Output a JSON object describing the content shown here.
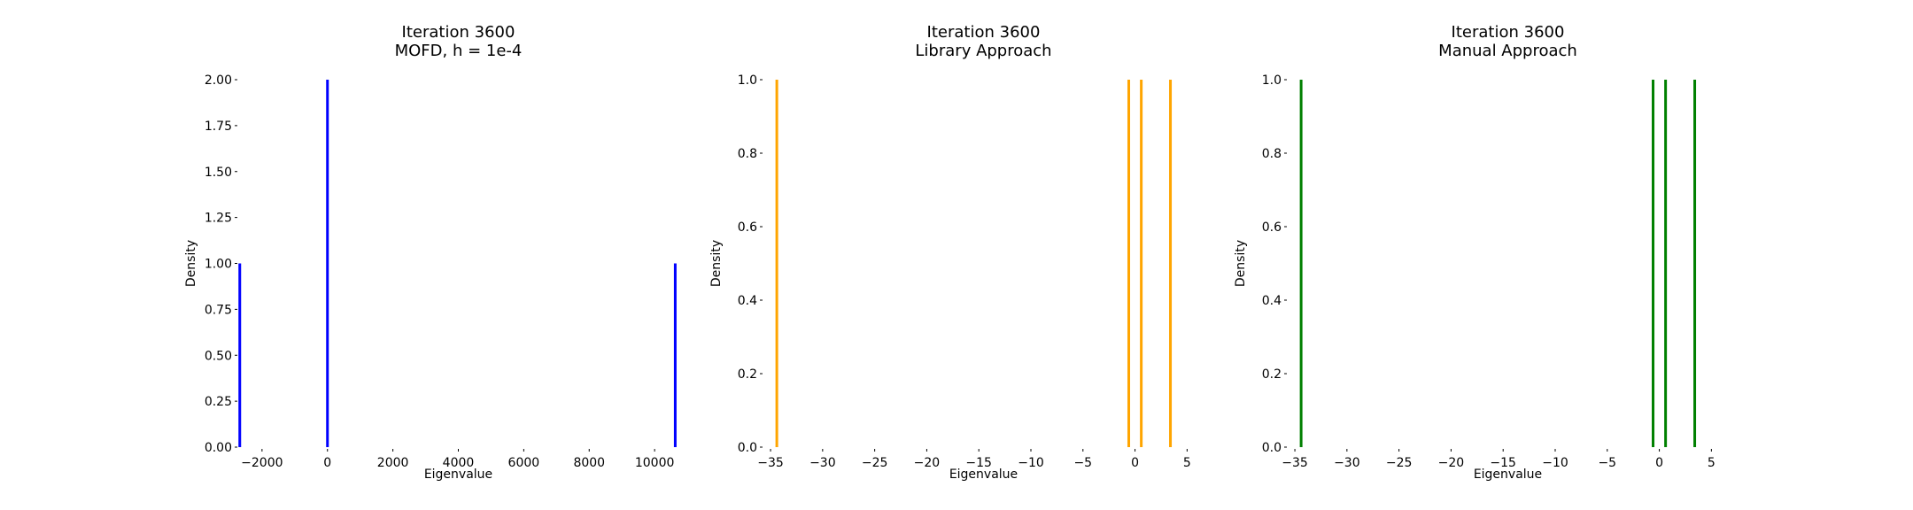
{
  "chart_data": [
    {
      "type": "bar",
      "title": "Iteration 3600",
      "subtitle": "MOFD, h = 1e-4",
      "xlabel": "Eigenvalue",
      "ylabel": "Density",
      "color": "#0000ff",
      "grid": false,
      "xlim": [
        -2700,
        10700
      ],
      "ylim": [
        0,
        2
      ],
      "xticks": [
        -2000,
        0,
        2000,
        4000,
        6000,
        8000,
        10000
      ],
      "xtick_labels": [
        "−2000",
        "0",
        "2000",
        "4000",
        "6000",
        "8000",
        "10000"
      ],
      "yticks": [
        0,
        0.25,
        0.5,
        0.75,
        1.0,
        1.25,
        1.5,
        1.75,
        2.0
      ],
      "ytick_labels": [
        "0.00",
        "0.25",
        "0.50",
        "0.75",
        "1.00",
        "1.25",
        "1.50",
        "1.75",
        "2.00"
      ],
      "x": [
        -2680,
        0,
        10630
      ],
      "values": [
        1,
        2,
        1
      ]
    },
    {
      "type": "bar",
      "title": "Iteration 3600",
      "subtitle": "Library Approach",
      "xlabel": "Eigenvalue",
      "ylabel": "Density",
      "color": "#ffa500",
      "grid": false,
      "xlim": [
        -35.6,
        6.5
      ],
      "ylim": [
        0,
        1
      ],
      "xticks": [
        -35,
        -30,
        -25,
        -20,
        -15,
        -10,
        -5,
        0,
        5
      ],
      "xtick_labels": [
        "−35",
        "−30",
        "−25",
        "−20",
        "−15",
        "−10",
        "−5",
        "0",
        "5"
      ],
      "yticks": [
        0,
        0.2,
        0.4,
        0.6,
        0.8,
        1.0
      ],
      "ytick_labels": [
        "0.0",
        "0.2",
        "0.4",
        "0.6",
        "0.8",
        "1.0"
      ],
      "x": [
        -34.4,
        -0.6,
        0.6,
        3.4
      ],
      "values": [
        1,
        1,
        1,
        1
      ]
    },
    {
      "type": "bar",
      "title": "Iteration 3600",
      "subtitle": "Manual Approach",
      "xlabel": "Eigenvalue",
      "ylabel": "Density",
      "color": "#008000",
      "grid": false,
      "xlim": [
        -35.6,
        6.5
      ],
      "ylim": [
        0,
        1
      ],
      "xticks": [
        -35,
        -30,
        -25,
        -20,
        -15,
        -10,
        -5,
        0,
        5
      ],
      "xtick_labels": [
        "−35",
        "−30",
        "−25",
        "−20",
        "−15",
        "−10",
        "−5",
        "0",
        "5"
      ],
      "yticks": [
        0,
        0.2,
        0.4,
        0.6,
        0.8,
        1.0
      ],
      "ytick_labels": [
        "0.0",
        "0.2",
        "0.4",
        "0.6",
        "0.8",
        "1.0"
      ],
      "x": [
        -34.4,
        -0.6,
        0.6,
        3.4
      ],
      "values": [
        1,
        1,
        1,
        1
      ]
    }
  ]
}
